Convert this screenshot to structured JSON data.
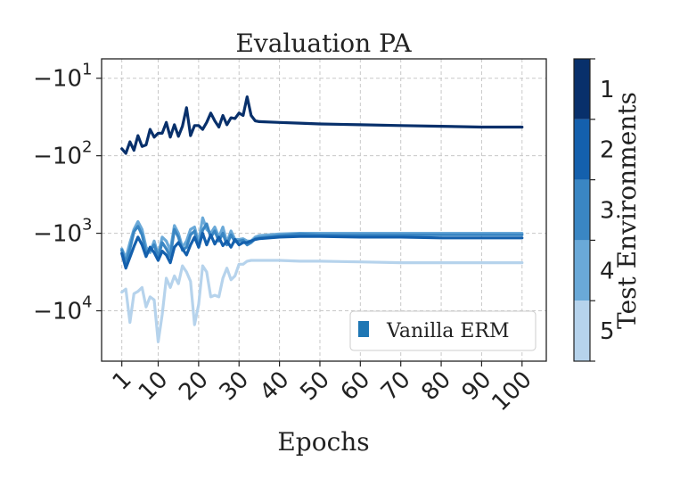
{
  "chart_data": {
    "type": "line",
    "title": "Evaluation PA",
    "xlabel": "Epochs",
    "ylabel": "",
    "y_scale": "symlog-negative",
    "ylim_exponent": [
      0.75,
      4.65
    ],
    "xlim": [
      -4,
      106
    ],
    "x_ticks": [
      1,
      10,
      20,
      30,
      40,
      50,
      60,
      70,
      80,
      90,
      100
    ],
    "x_tick_labels": [
      "1",
      "10",
      "20",
      "30",
      "40",
      "50",
      "60",
      "70",
      "80",
      "90",
      "100"
    ],
    "y_ticks": [
      1,
      2,
      3,
      4
    ],
    "y_tick_labels": [
      "−10",
      "−10",
      "−10",
      "−10"
    ],
    "y_tick_sups": [
      "1",
      "2",
      "3",
      "4"
    ],
    "grid": true,
    "legend": {
      "entries": [
        "Vanilla ERM"
      ],
      "placement": "lower-right",
      "swatch_color": "#1f77b4"
    },
    "colorbar": {
      "label": "Test Environments",
      "ticks": [
        "1",
        "2",
        "3",
        "4",
        "5"
      ],
      "colors": [
        "#08306b",
        "#1460ad",
        "#3a86c3",
        "#6aa9d8",
        "#b6d3ec"
      ]
    },
    "x": [
      1,
      2,
      3,
      4,
      5,
      6,
      7,
      8,
      9,
      10,
      11,
      12,
      13,
      14,
      15,
      16,
      17,
      18,
      19,
      20,
      21,
      22,
      23,
      24,
      25,
      26,
      27,
      28,
      29,
      30,
      31,
      32,
      33,
      34,
      35,
      40,
      45,
      50,
      60,
      70,
      80,
      90,
      100
    ],
    "series": [
      {
        "color": "#08306b",
        "y_exponent": [
          1.91,
          1.97,
          1.82,
          1.93,
          1.74,
          1.88,
          1.86,
          1.66,
          1.76,
          1.71,
          1.71,
          1.57,
          1.76,
          1.6,
          1.75,
          1.62,
          1.38,
          1.74,
          1.61,
          1.61,
          1.66,
          1.57,
          1.45,
          1.55,
          1.63,
          1.48,
          1.6,
          1.51,
          1.52,
          1.45,
          1.48,
          1.24,
          1.48,
          1.55,
          1.56,
          1.57,
          1.58,
          1.59,
          1.6,
          1.61,
          1.62,
          1.63,
          1.63
        ]
      },
      {
        "color": "#1460ad",
        "y_exponent": [
          3.26,
          3.45,
          3.31,
          3.17,
          3.05,
          3.15,
          3.3,
          3.18,
          3.25,
          3.35,
          3.23,
          3.28,
          3.38,
          3.18,
          3.12,
          3.2,
          3.28,
          3.15,
          3.05,
          3.18,
          3.0,
          3.15,
          3.02,
          3.14,
          3.05,
          3.16,
          3.1,
          3.18,
          3.08,
          3.15,
          3.12,
          3.12,
          3.1,
          3.08,
          3.07,
          3.05,
          3.04,
          3.04,
          3.05,
          3.05,
          3.06,
          3.06,
          3.06
        ]
      },
      {
        "color": "#3a86c3",
        "y_exponent": [
          3.22,
          3.38,
          3.2,
          2.98,
          2.91,
          3.02,
          3.25,
          3.22,
          3.15,
          3.31,
          3.12,
          3.2,
          3.3,
          2.95,
          3.05,
          3.22,
          3.18,
          3.02,
          2.97,
          3.18,
          2.96,
          2.88,
          3.05,
          2.97,
          3.1,
          3.0,
          3.15,
          3.02,
          3.11,
          3.1,
          3.09,
          3.15,
          3.12,
          3.07,
          3.06,
          3.03,
          3.01,
          3.02,
          3.02,
          3.02,
          3.02,
          3.02,
          3.02
        ]
      },
      {
        "color": "#6aa9d8",
        "y_exponent": [
          3.2,
          3.32,
          3.12,
          2.95,
          2.85,
          2.95,
          3.18,
          3.25,
          3.1,
          3.28,
          3.05,
          3.1,
          3.22,
          2.9,
          3.0,
          3.18,
          3.1,
          2.95,
          2.92,
          3.12,
          2.8,
          2.95,
          3.0,
          2.92,
          3.05,
          2.92,
          3.12,
          2.97,
          3.08,
          3.08,
          3.07,
          3.1,
          3.1,
          3.05,
          3.03,
          3.01,
          3.0,
          3.0,
          3.0,
          3.0,
          3.0,
          3.0,
          3.0
        ]
      },
      {
        "color": "#b6d3ec",
        "y_exponent": [
          3.76,
          3.72,
          4.15,
          3.78,
          3.75,
          3.7,
          3.95,
          3.82,
          3.86,
          4.4,
          4.05,
          3.58,
          3.7,
          3.55,
          3.65,
          3.42,
          3.5,
          3.62,
          4.18,
          3.92,
          3.42,
          3.5,
          3.82,
          3.8,
          3.82,
          3.58,
          3.45,
          3.6,
          3.55,
          3.4,
          3.4,
          3.36,
          3.35,
          3.35,
          3.35,
          3.35,
          3.36,
          3.36,
          3.37,
          3.38,
          3.38,
          3.38,
          3.38
        ]
      }
    ]
  }
}
